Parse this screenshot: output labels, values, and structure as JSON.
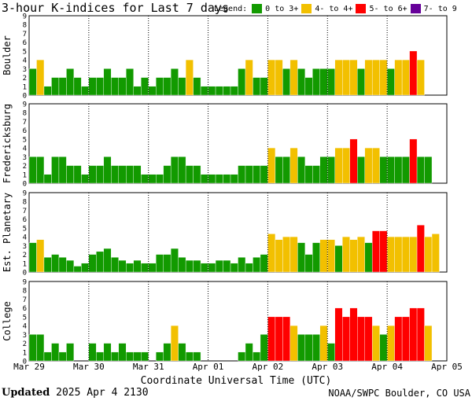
{
  "title": "3-hour K-indices for Last 7 days",
  "legend": {
    "label": "Legend:",
    "items": [
      {
        "label": "0 to 3+",
        "color": "#129a00"
      },
      {
        "label": "4- to 4+",
        "color": "#f2c000"
      },
      {
        "label": "5- to 6+",
        "color": "#ff0000"
      },
      {
        "label": "7- to 9",
        "color": "#660099"
      }
    ]
  },
  "footer": {
    "updated_label": "Updated",
    "updated_value": "2025 Apr  4 2130",
    "credit": "NOAA/SWPC Boulder, CO USA"
  },
  "chart_data": {
    "type": "bar",
    "xlabel": "Coordinate Universal Time (UTC)",
    "x_ticks": [
      "Mar 29",
      "Mar 30",
      "Mar 31",
      "Apr 01",
      "Apr 02",
      "Apr 03",
      "Apr 04",
      "Apr 05"
    ],
    "ylim": [
      0,
      9
    ],
    "y_ticks": [
      "0",
      "1",
      "2",
      "3",
      "4",
      "5",
      "6",
      "7",
      "8",
      "9"
    ],
    "interval_hours": 3,
    "thresholds": {
      "yellow_from": 3.67,
      "red_from": 4.67,
      "purple_from": 6.67
    },
    "panels": [
      {
        "name": "Boulder",
        "values": [
          3,
          4,
          1,
          2,
          2,
          3,
          2,
          1,
          2,
          2,
          3,
          2,
          2,
          3,
          1,
          2,
          1,
          2,
          2,
          3,
          2,
          4,
          2,
          1,
          1,
          1,
          1,
          1,
          3,
          4,
          2,
          2,
          4,
          4,
          3,
          4,
          3,
          2,
          3,
          3,
          3,
          4,
          4,
          4,
          3,
          4,
          4,
          4,
          3,
          4,
          4,
          5,
          4,
          0
        ]
      },
      {
        "name": "Fredericksburg",
        "values": [
          3,
          3,
          1,
          3,
          3,
          2,
          2,
          1,
          2,
          2,
          3,
          2,
          2,
          2,
          2,
          1,
          1,
          1,
          2,
          3,
          3,
          2,
          2,
          1,
          1,
          1,
          1,
          1,
          2,
          2,
          2,
          2,
          4,
          3,
          3,
          4,
          3,
          2,
          2,
          3,
          3,
          4,
          4,
          5,
          3,
          4,
          4,
          3,
          3,
          3,
          3,
          5,
          3,
          3,
          0
        ]
      },
      {
        "name": "Est. Planetary",
        "values": [
          3.33,
          3.67,
          1.67,
          2,
          1.67,
          1.33,
          0.67,
          1,
          2,
          2.33,
          2.67,
          1.67,
          1.33,
          1,
          1.33,
          1,
          1,
          2,
          2,
          2.67,
          1.67,
          1.33,
          1.33,
          1,
          1,
          1.33,
          1.33,
          1,
          1.67,
          1,
          1.67,
          2,
          4.33,
          3.67,
          4,
          4,
          3.33,
          2,
          3.33,
          3.67,
          3.67,
          3,
          4,
          3.67,
          4,
          3.33,
          4.67,
          4.67,
          4,
          4,
          4,
          4,
          5.33,
          4,
          4.33
        ]
      },
      {
        "name": "College",
        "values": [
          3,
          3,
          1,
          2,
          1,
          2,
          0,
          0,
          2,
          1,
          2,
          1,
          2,
          1,
          1,
          1,
          0,
          1,
          2,
          4,
          2,
          1,
          1,
          0,
          0,
          0,
          0,
          0,
          1,
          2,
          1,
          3,
          5,
          5,
          5,
          4,
          3,
          3,
          3,
          4,
          2,
          6,
          5,
          6,
          5,
          5,
          4,
          3,
          4,
          5,
          5,
          6,
          6,
          4,
          0
        ]
      }
    ]
  }
}
